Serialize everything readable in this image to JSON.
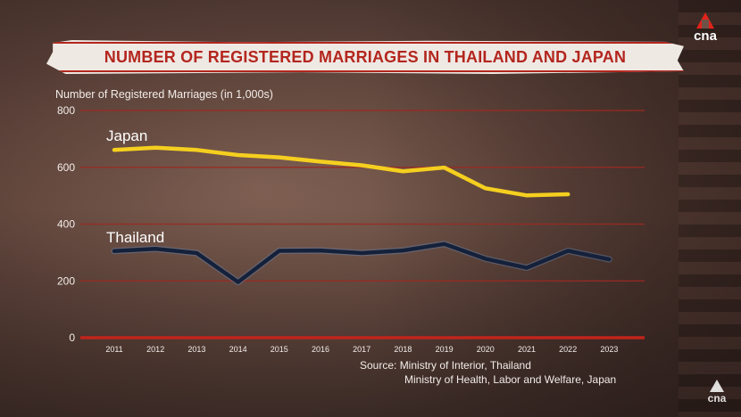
{
  "title": "NUMBER OF REGISTERED MARRIAGES IN THAILAND  AND JAPAN",
  "logo": {
    "text": "cna",
    "icon": "cna-logo-icon"
  },
  "source": {
    "line1": "Source: Ministry of Interior, Thailand",
    "line2": "Ministry of Health, Labor and Welfare, Japan"
  },
  "colors": {
    "title": "#b3261e",
    "banner": "#efe9e4",
    "gridline": "#9a2a22",
    "axis": "#c0241b",
    "japan": "#f5cf1f",
    "thailand": "#15213a"
  },
  "chart_data": {
    "type": "line",
    "title": "NUMBER OF REGISTERED MARRIAGES IN THAILAND  AND JAPAN",
    "ylabel": "Number of Registered Marriages (in 1,000s)",
    "xlabel": "",
    "ylim": [
      0,
      800
    ],
    "yticks": [
      0,
      200,
      400,
      600,
      800
    ],
    "grid": true,
    "categories": [
      "2011",
      "2012",
      "2013",
      "2014",
      "2015",
      "2016",
      "2017",
      "2018",
      "2019",
      "2020",
      "2021",
      "2022",
      "2023"
    ],
    "series": [
      {
        "name": "Japan",
        "color": "#f5cf1f",
        "values": [
          661,
          669,
          661,
          643,
          635,
          620,
          607,
          586,
          599,
          526,
          501,
          505,
          null
        ]
      },
      {
        "name": "Thailand",
        "color": "#15213a",
        "values": [
          305,
          313,
          298,
          196,
          306,
          307,
          298,
          307,
          330,
          278,
          246,
          306,
          276
        ]
      }
    ]
  }
}
